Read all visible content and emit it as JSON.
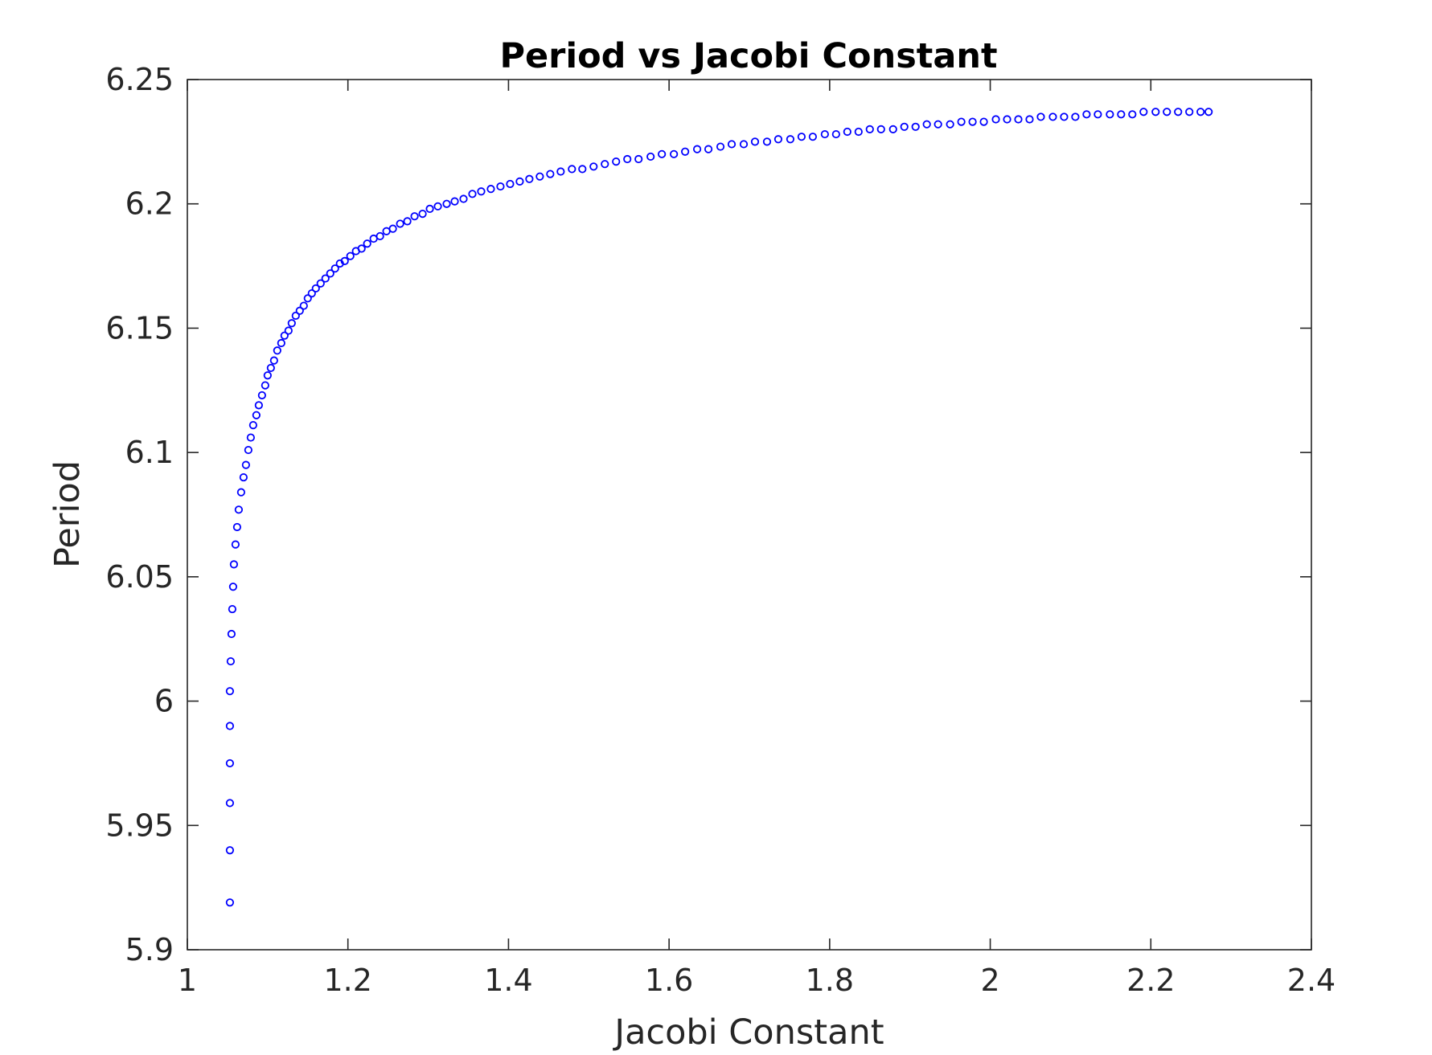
{
  "chart_data": {
    "type": "scatter",
    "title": "Period vs Jacobi Constant",
    "xlabel": "Jacobi Constant",
    "ylabel": "Period",
    "xlim": [
      1,
      2.4
    ],
    "ylim": [
      5.9,
      6.25
    ],
    "xticks": [
      1,
      1.2,
      1.4,
      1.6,
      1.8,
      2,
      2.2,
      2.4
    ],
    "xtick_labels": [
      "1",
      "1.2",
      "1.4",
      "1.6",
      "1.8",
      "2",
      "2.2",
      "2.4"
    ],
    "yticks": [
      5.9,
      5.95,
      6,
      6.05,
      6.1,
      6.15,
      6.2,
      6.25
    ],
    "ytick_labels": [
      "5.9",
      "5.95",
      "6",
      "6.05",
      "6.1",
      "6.15",
      "6.2",
      "6.25"
    ],
    "grid": false,
    "marker": "circle-open",
    "color": "#0000ff",
    "series": [
      {
        "x": [
          1.053,
          1.053,
          1.053,
          1.053,
          1.053,
          1.053,
          1.054,
          1.055,
          1.056,
          1.057,
          1.058,
          1.06,
          1.062,
          1.064,
          1.067,
          1.07,
          1.073,
          1.076,
          1.079,
          1.082,
          1.086,
          1.089,
          1.093,
          1.097,
          1.1,
          1.104,
          1.108,
          1.112,
          1.117,
          1.121,
          1.126,
          1.13,
          1.135,
          1.14,
          1.145,
          1.15,
          1.155,
          1.16,
          1.166,
          1.172,
          1.178,
          1.184,
          1.19,
          1.196,
          1.203,
          1.21,
          1.217,
          1.224,
          1.232,
          1.24,
          1.248,
          1.256,
          1.265,
          1.274,
          1.283,
          1.293,
          1.302,
          1.312,
          1.323,
          1.333,
          1.344,
          1.355,
          1.366,
          1.378,
          1.39,
          1.402,
          1.414,
          1.426,
          1.439,
          1.452,
          1.465,
          1.479,
          1.492,
          1.506,
          1.52,
          1.534,
          1.548,
          1.562,
          1.577,
          1.591,
          1.606,
          1.62,
          1.635,
          1.649,
          1.664,
          1.678,
          1.693,
          1.707,
          1.722,
          1.736,
          1.751,
          1.765,
          1.779,
          1.794,
          1.808,
          1.822,
          1.836,
          1.85,
          1.864,
          1.879,
          1.893,
          1.907,
          1.921,
          1.935,
          1.95,
          1.964,
          1.978,
          1.992,
          2.007,
          2.021,
          2.035,
          2.049,
          2.063,
          2.078,
          2.092,
          2.106,
          2.12,
          2.134,
          2.149,
          2.163,
          2.177,
          2.191,
          2.206,
          2.22,
          2.234,
          2.248,
          2.262,
          2.272
        ],
        "y": [
          5.919,
          5.94,
          5.959,
          5.975,
          5.99,
          6.004,
          6.016,
          6.027,
          6.037,
          6.046,
          6.055,
          6.063,
          6.07,
          6.077,
          6.084,
          6.09,
          6.095,
          6.101,
          6.106,
          6.111,
          6.115,
          6.119,
          6.123,
          6.127,
          6.131,
          6.134,
          6.137,
          6.141,
          6.144,
          6.147,
          6.149,
          6.152,
          6.155,
          6.157,
          6.159,
          6.162,
          6.164,
          6.166,
          6.168,
          6.17,
          6.172,
          6.174,
          6.176,
          6.177,
          6.179,
          6.181,
          6.182,
          6.184,
          6.186,
          6.187,
          6.189,
          6.19,
          6.192,
          6.193,
          6.195,
          6.196,
          6.198,
          6.199,
          6.2,
          6.201,
          6.202,
          6.204,
          6.205,
          6.206,
          6.207,
          6.208,
          6.209,
          6.21,
          6.211,
          6.212,
          6.213,
          6.214,
          6.214,
          6.215,
          6.216,
          6.217,
          6.218,
          6.218,
          6.219,
          6.22,
          6.22,
          6.221,
          6.222,
          6.222,
          6.223,
          6.224,
          6.224,
          6.225,
          6.225,
          6.226,
          6.226,
          6.227,
          6.227,
          6.228,
          6.228,
          6.229,
          6.229,
          6.23,
          6.23,
          6.23,
          6.231,
          6.231,
          6.232,
          6.232,
          6.232,
          6.233,
          6.233,
          6.233,
          6.234,
          6.234,
          6.234,
          6.234,
          6.235,
          6.235,
          6.235,
          6.235,
          6.236,
          6.236,
          6.236,
          6.236,
          6.236,
          6.237,
          6.237,
          6.237,
          6.237,
          6.237,
          6.237,
          6.237
        ]
      }
    ]
  }
}
